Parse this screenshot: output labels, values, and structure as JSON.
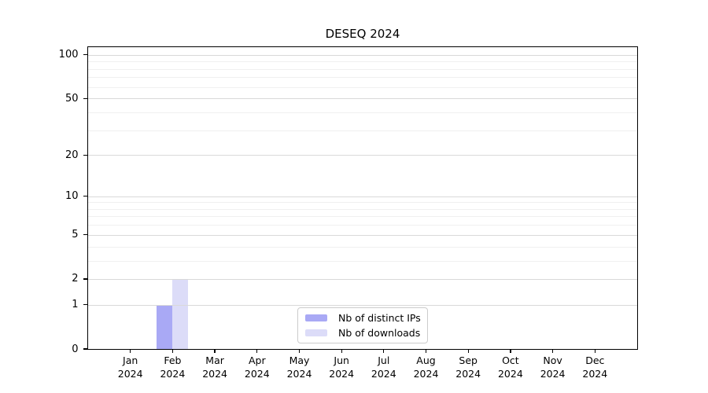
{
  "chart_data": {
    "type": "bar",
    "title": "DESEQ 2024",
    "xlabel": "",
    "ylabel": "",
    "y_scale": "log10(1+value)",
    "y_top": 113,
    "y_major_ticks": [
      0,
      1,
      2,
      5,
      10,
      20,
      50,
      100
    ],
    "y_minor_gridlines": [
      3,
      4,
      6,
      7,
      8,
      9,
      30,
      40,
      60,
      70,
      80,
      90
    ],
    "months": [
      "Jan",
      "Feb",
      "Mar",
      "Apr",
      "May",
      "Jun",
      "Jul",
      "Aug",
      "Sep",
      "Oct",
      "Nov",
      "Dec"
    ],
    "year": "2024",
    "categories": [
      "Jan 2024",
      "Feb 2024",
      "Mar 2024",
      "Apr 2024",
      "May 2024",
      "Jun 2024",
      "Jul 2024",
      "Aug 2024",
      "Sep 2024",
      "Oct 2024",
      "Nov 2024",
      "Dec 2024"
    ],
    "series": [
      {
        "key": "distinct-ips",
        "name": "Nb of distinct IPs",
        "color": "#a9a9f5",
        "values": [
          0,
          1,
          0,
          0,
          0,
          0,
          0,
          0,
          0,
          0,
          0,
          0
        ]
      },
      {
        "key": "downloads",
        "name": "Nb of downloads",
        "color": "#dcdcf8",
        "values": [
          0,
          2,
          0,
          0,
          0,
          0,
          0,
          0,
          0,
          0,
          0,
          0
        ]
      }
    ],
    "legend_position": "bottom-center",
    "grid": true
  }
}
